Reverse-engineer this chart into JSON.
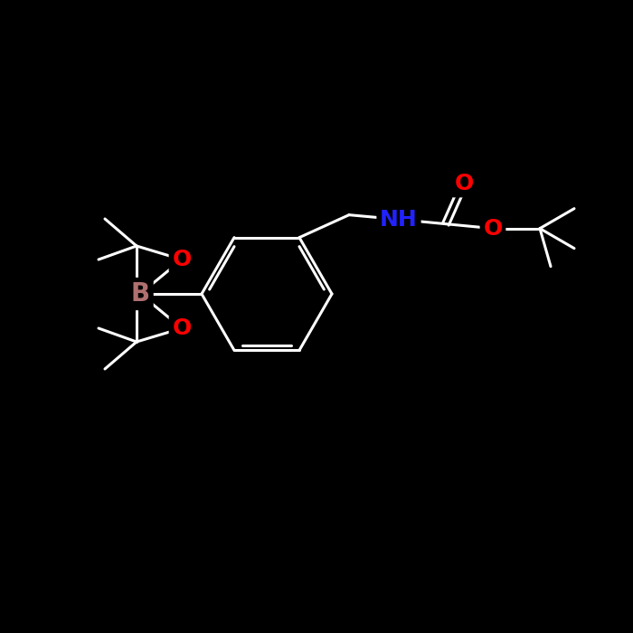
{
  "bg_color": "#000000",
  "bond_color": "#ffffff",
  "atom_colors": {
    "B": "#b07070",
    "O": "#ff0000",
    "N": "#2222ff",
    "C": "#ffffff"
  },
  "font_size_atom": 20,
  "figsize": [
    7.0,
    7.0
  ],
  "dpi": 100
}
